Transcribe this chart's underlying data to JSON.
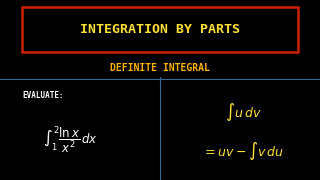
{
  "bg_color": "#000000",
  "title_text": "INTEGRATION BY PARTS",
  "subtitle_text": "DEFINITE INTEGRAL",
  "title_color": "#FFE033",
  "subtitle_color": "#FFB300",
  "title_box_edge_color": "#CC2200",
  "divider_color": "#336699",
  "evaluate_label": "EVALUATE:",
  "formula_color_left": "#FFFFFF",
  "formula_color_right": "#FFE033",
  "evaluate_color": "#FFFFFF",
  "figsize": [
    3.2,
    1.8
  ],
  "dpi": 100
}
